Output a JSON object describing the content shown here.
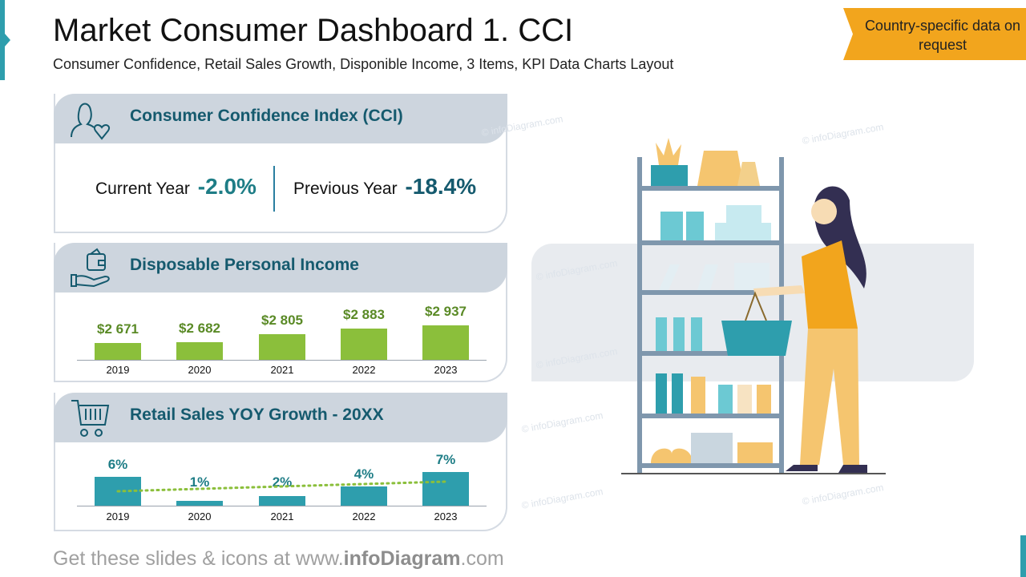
{
  "title": "Market Consumer Dashboard 1. CCI",
  "subtitle": "Consumer Confidence, Retail Sales Growth, Disponible Income, 3 Items, KPI Data Charts Layout",
  "badge": "Country-specific data on request",
  "watermark": "© infoDiagram.com",
  "cci": {
    "title": "Consumer Confidence Index (CCI)",
    "current_label": "Current Year",
    "current_value": "-2.0%",
    "previous_label": "Previous Year",
    "previous_value": "-18.4%"
  },
  "income": {
    "title": "Disposable Personal Income",
    "color": "#8bbf3b",
    "label_color": "#5a8a26",
    "years": [
      "2019",
      "2020",
      "2021",
      "2022",
      "2023"
    ],
    "values": [
      2671,
      2682,
      2805,
      2883,
      2937
    ],
    "labels": [
      "$2 671",
      "$2 682",
      "$2 805",
      "$2 883",
      "$2 937"
    ]
  },
  "retail": {
    "title": "Retail Sales YOY Growth - 20XX",
    "color": "#2e9ead",
    "label_color": "#1e7d86",
    "trend_color": "#8bbf3b",
    "years": [
      "2019",
      "2020",
      "2021",
      "2022",
      "2023"
    ],
    "values": [
      6,
      1,
      2,
      4,
      7
    ],
    "labels": [
      "6%",
      "1%",
      "2%",
      "4%",
      "7%"
    ]
  },
  "footer": {
    "prefix": "Get these slides & icons at www.",
    "brand": "infoDiagram",
    ".suffix": "",
    "suffix": ".com"
  }
}
